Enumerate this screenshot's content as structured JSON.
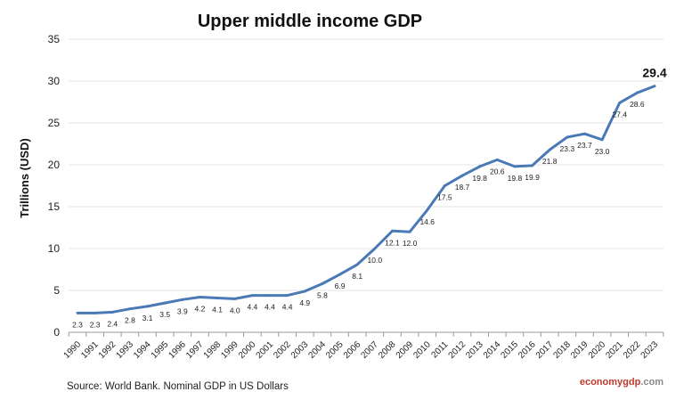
{
  "chart_data": {
    "type": "line",
    "title": "Upper middle income GDP",
    "xlabel": "",
    "ylabel": "Trillions (USD)",
    "ylim": [
      0,
      35
    ],
    "yticks": [
      0,
      5,
      10,
      15,
      20,
      25,
      30,
      35
    ],
    "grid": true,
    "legend": "none",
    "x": [
      "1990",
      "1991",
      "1992",
      "1993",
      "1994",
      "1995",
      "1996",
      "1997",
      "1998",
      "1999",
      "2000",
      "2001",
      "2002",
      "2003",
      "2004",
      "2005",
      "2006",
      "2007",
      "2008",
      "2009",
      "2010",
      "2011",
      "2012",
      "2013",
      "2014",
      "2015",
      "2016",
      "2017",
      "2018",
      "2019",
      "2020",
      "2021",
      "2022",
      "2023"
    ],
    "series": [
      {
        "values": [
          2.3,
          2.3,
          2.4,
          2.8,
          3.1,
          3.5,
          3.9,
          4.2,
          4.1,
          4.0,
          4.4,
          4.4,
          4.4,
          4.9,
          5.8,
          6.9,
          8.1,
          10.0,
          12.1,
          12.0,
          14.6,
          17.5,
          18.7,
          19.8,
          20.6,
          19.8,
          19.9,
          21.8,
          23.3,
          23.7,
          23.0,
          27.4,
          28.6,
          29.4
        ],
        "color": "#4a7ab5"
      }
    ],
    "source": "Source: World Bank.  Nominal GDP in US Dollars",
    "brand": {
      "part1": "economy",
      "part2": "gdp",
      "part3": ".com",
      "color1": "#c0392b",
      "color2": "#888888"
    }
  }
}
